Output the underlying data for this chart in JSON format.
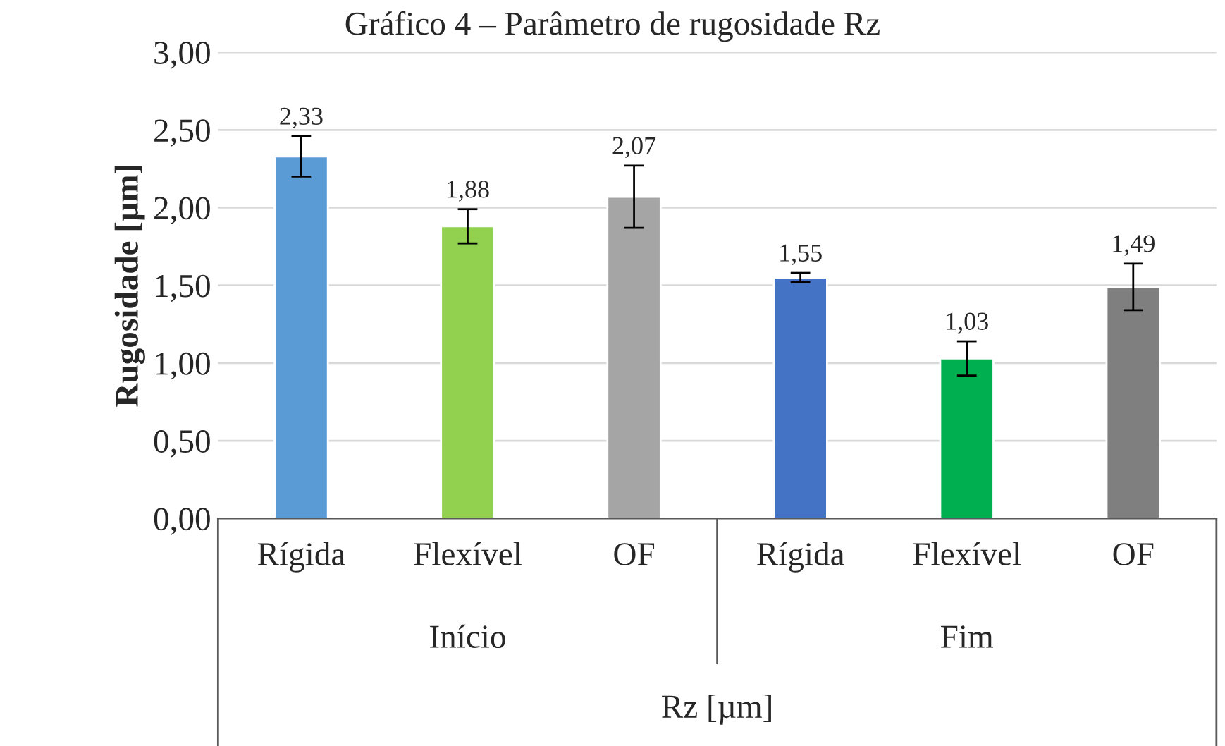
{
  "chart_data": {
    "type": "bar",
    "title": "Gráfico 4 – Parâmetro de rugosidade Rz",
    "categories": [
      "Rígida",
      "Flexível",
      "OF",
      "Rígida",
      "Flexível",
      "OF"
    ],
    "values": [
      2.33,
      1.88,
      2.07,
      1.55,
      1.03,
      1.49
    ],
    "errors": [
      0.13,
      0.11,
      0.2,
      0.03,
      0.11,
      0.15
    ],
    "colors": [
      "#5b9bd5",
      "#92d050",
      "#a5a5a5",
      "#4472c4",
      "#00b050",
      "#7f7f7f"
    ],
    "value_labels": [
      "2,33",
      "1,88",
      "2,07",
      "1,55",
      "1,03",
      "1,49"
    ],
    "annotations": [
      "Início",
      "Fim"
    ],
    "xlabel": "Rz [µm]",
    "ylabel": "Rugosidade [µm]",
    "ylim": [
      0,
      3
    ],
    "yticks": [
      {
        "value": 0,
        "label": "0,00"
      },
      {
        "value": 0.5,
        "label": "0,50"
      },
      {
        "value": 1,
        "label": "1,00"
      },
      {
        "value": 1.5,
        "label": "1,50"
      },
      {
        "value": 2,
        "label": "2,00"
      },
      {
        "value": 2.5,
        "label": "2,50"
      },
      {
        "value": 3,
        "label": "3,00"
      }
    ],
    "grid": "y"
  }
}
